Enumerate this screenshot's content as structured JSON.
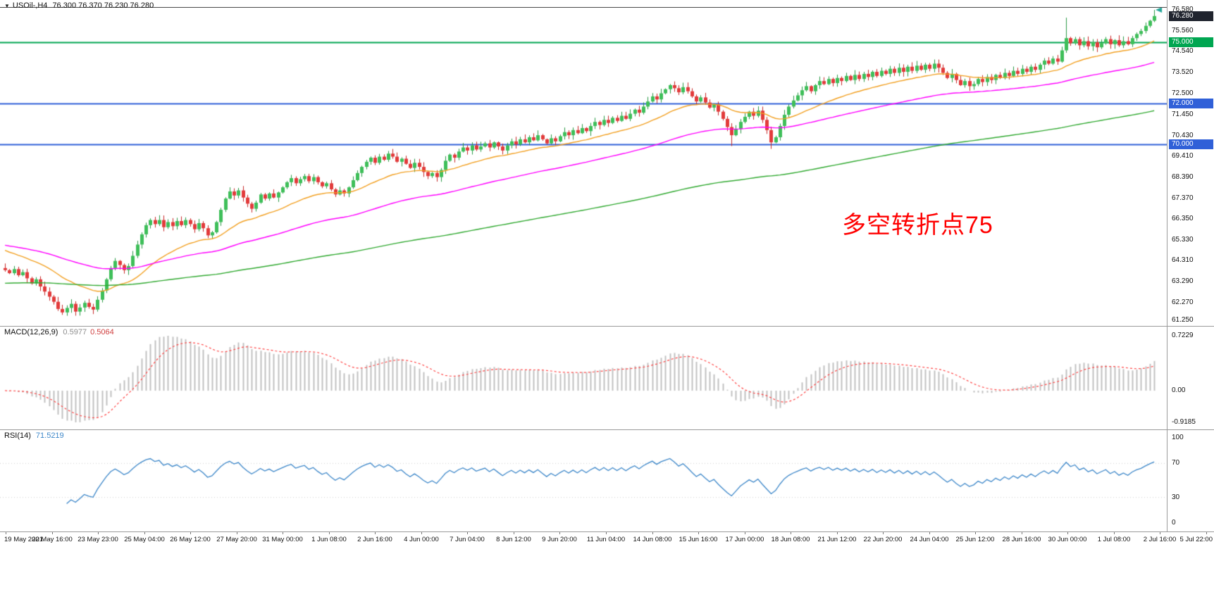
{
  "window": {
    "app": "MetaTrader chart",
    "symbol_window_title": "USOil-,H4"
  },
  "chart": {
    "title": {
      "symbol_period": "USOil-,H4",
      "ohlc": "76.300 76.370 76.230 76.280"
    },
    "annotation": {
      "text": "多空转折点75",
      "color": "#ff0000"
    },
    "scale": {
      "top_price": 76.72,
      "bottom_price": 61.12
    },
    "colors": {
      "up_fill": "#3fbf5a",
      "up_stroke": "#2a9a44",
      "down_fill": "#e23b3b",
      "down_stroke": "#c62828",
      "rsi": "#3d87c9",
      "macd_hist": "#c2c2c2",
      "macd_signal": "#ff4444"
    },
    "levels": [
      {
        "price": 75.0,
        "color": "#00a651",
        "width": 2
      },
      {
        "price": 72.0,
        "color": "#3060d8",
        "width": 2
      },
      {
        "price": 70.0,
        "color": "#3060d8",
        "width": 2
      }
    ],
    "ma": [
      {
        "name": "fast-ma",
        "period": 24,
        "seed": 64.9,
        "color": "#f2a124"
      },
      {
        "name": "mid-ma",
        "period": 72,
        "seed": 65.1,
        "color": "#ff00ff"
      },
      {
        "name": "slow-ma",
        "period": 200,
        "seed": 63.2,
        "color": "#33aa33"
      }
    ],
    "marker": {
      "price": 76.58,
      "color": "#26a69a"
    },
    "price_axis": {
      "ticks": [
        "76.580",
        "75.560",
        "74.540",
        "73.520",
        "72.500",
        "71.450",
        "70.430",
        "69.410",
        "68.390",
        "67.370",
        "66.350",
        "65.330",
        "64.310",
        "63.290",
        "62.270",
        "61.250"
      ],
      "badges": [
        {
          "label": "76.280",
          "price": 76.28,
          "bg": "#20242e"
        },
        {
          "label": "75.000",
          "price": 75.0,
          "bg": "#00a651"
        },
        {
          "label": "72.000",
          "price": 72.0,
          "bg": "#3060d8"
        },
        {
          "label": "70.000",
          "price": 70.0,
          "bg": "#3060d8"
        }
      ]
    }
  },
  "macd_panel": {
    "label": "MACD(12,26,9)",
    "value1": "0.5977",
    "value2": "0.5064",
    "ticks": [
      "0.7229",
      "0.00",
      "-0.9185"
    ]
  },
  "rsi_panel": {
    "label": "RSI(14)",
    "value": "71.5219",
    "ticks": [
      "100",
      "70",
      "30",
      "0"
    ]
  },
  "time_axis": {
    "labels": [
      "19 May 2021",
      "20 May 16:00",
      "23 May 23:00",
      "25 May 04:00",
      "26 May 12:00",
      "27 May 20:00",
      "31 May 00:00",
      "1 Jun 08:00",
      "2 Jun 16:00",
      "4 Jun 00:00",
      "7 Jun 04:00",
      "8 Jun 12:00",
      "9 Jun 20:00",
      "11 Jun 04:00",
      "14 Jun 08:00",
      "15 Jun 16:00",
      "17 Jun 00:00",
      "18 Jun 08:00",
      "21 Jun 12:00",
      "22 Jun 20:00",
      "24 Jun 04:00",
      "25 Jun 12:00",
      "28 Jun 16:00",
      "30 Jun 00:00",
      "1 Jul 08:00",
      "2 Jul 16:00",
      "5 Jul 22:00"
    ]
  },
  "chart_data": {
    "type": "candlestick",
    "symbol": "USOil-",
    "timeframe": "H4",
    "title": "USOil-,H4",
    "ohlc_display": {
      "open": 76.3,
      "high": 76.37,
      "low": 76.23,
      "close": 76.28
    },
    "ylim": [
      61.25,
      76.58
    ],
    "y_tick_step": 1.02,
    "horizontal_levels": [
      75.0,
      72.0,
      70.0
    ],
    "annotation": "多空转折点75",
    "first_open": 63.95,
    "closes": [
      63.85,
      63.7,
      63.9,
      63.6,
      63.75,
      63.45,
      63.2,
      63.4,
      63.05,
      62.8,
      62.55,
      62.3,
      61.95,
      61.78,
      62.0,
      62.2,
      61.82,
      62.02,
      62.25,
      62.05,
      61.92,
      62.4,
      62.85,
      63.4,
      63.95,
      64.3,
      64.1,
      63.85,
      64.05,
      64.55,
      65.1,
      65.6,
      66.05,
      66.3,
      66.1,
      66.3,
      65.95,
      66.2,
      66.0,
      66.25,
      66.05,
      66.3,
      66.1,
      65.85,
      66.15,
      65.9,
      65.55,
      65.7,
      66.2,
      66.8,
      67.35,
      67.7,
      67.5,
      67.75,
      67.4,
      67.1,
      66.85,
      67.15,
      67.55,
      67.35,
      67.6,
      67.4,
      67.65,
      67.9,
      68.15,
      68.35,
      68.1,
      68.3,
      68.45,
      68.2,
      68.4,
      68.15,
      67.95,
      68.1,
      67.8,
      67.55,
      67.75,
      67.6,
      67.9,
      68.25,
      68.6,
      68.9,
      69.15,
      69.35,
      69.1,
      69.4,
      69.25,
      69.55,
      69.4,
      69.15,
      69.3,
      69.05,
      68.85,
      69.1,
      68.9,
      68.65,
      68.45,
      68.6,
      68.4,
      68.75,
      69.2,
      69.5,
      69.35,
      69.65,
      69.85,
      69.7,
      69.95,
      69.75,
      69.9,
      70.05,
      69.85,
      70.1,
      69.9,
      69.7,
      69.95,
      70.15,
      70.0,
      70.25,
      70.1,
      70.35,
      70.2,
      70.45,
      70.25,
      70.05,
      70.3,
      70.15,
      70.4,
      70.6,
      70.45,
      70.7,
      70.55,
      70.8,
      70.65,
      70.9,
      71.1,
      70.95,
      71.2,
      71.05,
      71.3,
      71.15,
      71.4,
      71.25,
      71.5,
      71.7,
      71.55,
      71.85,
      72.1,
      72.35,
      72.2,
      72.5,
      72.7,
      72.9,
      72.75,
      72.55,
      72.8,
      72.6,
      72.35,
      72.1,
      72.3,
      72.05,
      71.8,
      71.95,
      71.6,
      71.25,
      70.85,
      70.45,
      70.75,
      71.1,
      71.35,
      71.6,
      71.4,
      71.65,
      71.2,
      70.7,
      70.1,
      70.35,
      70.9,
      71.45,
      71.85,
      72.15,
      72.4,
      72.65,
      72.85,
      72.6,
      72.9,
      73.1,
      72.95,
      73.2,
      73.0,
      73.25,
      73.1,
      73.35,
      73.15,
      73.4,
      73.2,
      73.45,
      73.3,
      73.55,
      73.35,
      73.6,
      73.45,
      73.7,
      73.5,
      73.75,
      73.55,
      73.8,
      73.6,
      73.85,
      73.65,
      73.9,
      73.7,
      73.95,
      73.75,
      73.5,
      73.25,
      73.45,
      73.15,
      72.9,
      73.1,
      72.85,
      72.95,
      73.2,
      73.05,
      73.3,
      73.15,
      73.4,
      73.25,
      73.5,
      73.35,
      73.6,
      73.45,
      73.7,
      73.55,
      73.8,
      73.65,
      73.9,
      74.1,
      73.95,
      74.2,
      74.05,
      74.6,
      75.2,
      74.95,
      75.15,
      74.85,
      75.05,
      74.8,
      75.0,
      74.75,
      74.95,
      75.15,
      74.9,
      75.1,
      74.85,
      75.05,
      74.9,
      75.2,
      75.4,
      75.55,
      75.8,
      76.05,
      76.28
    ],
    "wick_overrides": {
      "13": {
        "low": 61.66
      },
      "16": {
        "low": 61.62
      },
      "20": {
        "low": 61.7
      },
      "165": {
        "low": 69.92
      },
      "174": {
        "low": 69.78
      },
      "241": {
        "high": 76.2
      },
      "261": {
        "high": 76.58
      }
    },
    "moving_averages": [
      {
        "color": "#f2a124",
        "description": "fast MA (orange)"
      },
      {
        "color": "#ff00ff",
        "description": "medium MA (magenta)"
      },
      {
        "color": "#33aa33",
        "description": "slow MA (green)"
      }
    ],
    "indicators": [
      {
        "name": "MACD",
        "params": "12,26,9",
        "shown_values": [
          0.5977,
          0.5064
        ],
        "scale": [
          0.7229,
          0.0,
          -0.9185
        ],
        "histogram_color": "#c2c2c2",
        "signal_color": "#ff4444"
      },
      {
        "name": "RSI",
        "params": "14",
        "shown_value": 71.5219,
        "scale": [
          100,
          70,
          30,
          0
        ],
        "line_color": "#3d87c9"
      }
    ],
    "x_axis_labels": [
      "19 May 2021",
      "20 May 16:00",
      "23 May 23:00",
      "25 May 04:00",
      "26 May 12:00",
      "27 May 20:00",
      "31 May 00:00",
      "1 Jun 08:00",
      "2 Jun 16:00",
      "4 Jun 00:00",
      "7 Jun 04:00",
      "8 Jun 12:00",
      "9 Jun 20:00",
      "11 Jun 04:00",
      "14 Jun 08:00",
      "15 Jun 16:00",
      "17 Jun 00:00",
      "18 Jun 08:00",
      "21 Jun 12:00",
      "22 Jun 20:00",
      "24 Jun 04:00",
      "25 Jun 12:00",
      "28 Jun 16:00",
      "30 Jun 00:00",
      "1 Jul 08:00",
      "2 Jul 16:00",
      "5 Jul 22:00"
    ]
  }
}
